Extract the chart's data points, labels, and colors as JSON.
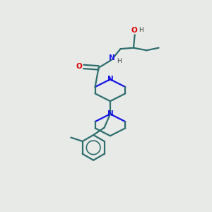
{
  "background_color": "#e8eae8",
  "bond_color": "#2d6e6e",
  "nitrogen_color": "#1414e6",
  "oxygen_color": "#dd0000",
  "line_width": 1.6,
  "figsize": [
    3.0,
    3.0
  ],
  "dpi": 100,
  "xlim": [
    0,
    10
  ],
  "ylim": [
    0,
    10
  ]
}
